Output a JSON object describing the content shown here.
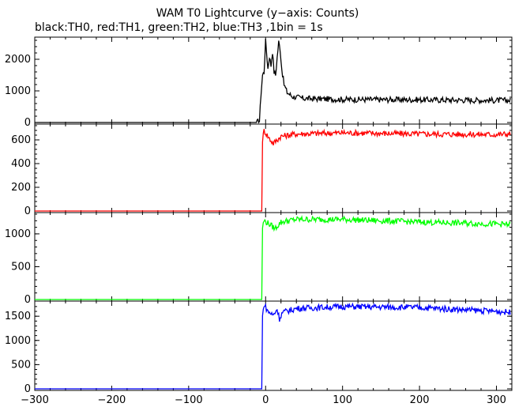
{
  "chart_data": {
    "type": "line",
    "title": "WAM T0 Lightcurve (y−axis: Counts)",
    "subtitle": "black:TH0, red:TH1, green:TH2, blue:TH3 ,1bin = 1s",
    "xlim": [
      -300,
      320
    ],
    "xticks": [
      -300,
      -200,
      -100,
      0,
      100,
      200,
      300
    ],
    "xtick_labels": [
      "−300",
      "−200",
      "−100",
      "0",
      "100",
      "200",
      "300"
    ],
    "grid": false,
    "panels": [
      {
        "name": "TH0",
        "color": "#000000",
        "ylim": [
          0,
          2650
        ],
        "yticks": [
          0,
          1000,
          2000
        ],
        "points": [
          [
            -300,
            0
          ],
          [
            -12,
            0
          ],
          [
            -8,
            50
          ],
          [
            -6,
            900
          ],
          [
            -4,
            1500
          ],
          [
            -2,
            1600
          ],
          [
            0,
            2600
          ],
          [
            1,
            2300
          ],
          [
            3,
            1700
          ],
          [
            5,
            2100
          ],
          [
            7,
            1800
          ],
          [
            9,
            2250
          ],
          [
            11,
            1600
          ],
          [
            13,
            1500
          ],
          [
            15,
            2050
          ],
          [
            17,
            2550
          ],
          [
            19,
            2300
          ],
          [
            21,
            1700
          ],
          [
            24,
            1200
          ],
          [
            28,
            950
          ],
          [
            35,
            820
          ],
          [
            50,
            760
          ],
          [
            100,
            730
          ],
          [
            200,
            720
          ],
          [
            300,
            700
          ],
          [
            318,
            700
          ]
        ]
      },
      {
        "name": "TH1",
        "color": "#ff0000",
        "ylim": [
          0,
          720
        ],
        "yticks": [
          0,
          200,
          400,
          600
        ],
        "points": [
          [
            -300,
            0
          ],
          [
            -5,
            0
          ],
          [
            -4,
            600
          ],
          [
            -2,
            680
          ],
          [
            5,
            610
          ],
          [
            10,
            570
          ],
          [
            15,
            600
          ],
          [
            20,
            630
          ],
          [
            40,
            650
          ],
          [
            100,
            660
          ],
          [
            200,
            650
          ],
          [
            300,
            645
          ],
          [
            318,
            650
          ]
        ]
      },
      {
        "name": "TH2",
        "color": "#00ff00",
        "ylim": [
          0,
          1300
        ],
        "yticks": [
          0,
          500,
          1000
        ],
        "points": [
          [
            -300,
            0
          ],
          [
            -5,
            0
          ],
          [
            -4,
            1100
          ],
          [
            -2,
            1200
          ],
          [
            5,
            1150
          ],
          [
            12,
            1080
          ],
          [
            20,
            1180
          ],
          [
            40,
            1220
          ],
          [
            100,
            1220
          ],
          [
            200,
            1180
          ],
          [
            300,
            1150
          ],
          [
            318,
            1140
          ]
        ]
      },
      {
        "name": "TH3",
        "color": "#0000ff",
        "ylim": [
          0,
          1780
        ],
        "yticks": [
          0,
          500,
          1000,
          1500
        ],
        "points": [
          [
            -300,
            0
          ],
          [
            -5,
            0
          ],
          [
            -4,
            1500
          ],
          [
            -2,
            1750
          ],
          [
            3,
            1600
          ],
          [
            10,
            1520
          ],
          [
            15,
            1650
          ],
          [
            18,
            1450
          ],
          [
            22,
            1580
          ],
          [
            40,
            1660
          ],
          [
            100,
            1700
          ],
          [
            200,
            1680
          ],
          [
            300,
            1600
          ],
          [
            318,
            1580
          ]
        ]
      }
    ]
  }
}
